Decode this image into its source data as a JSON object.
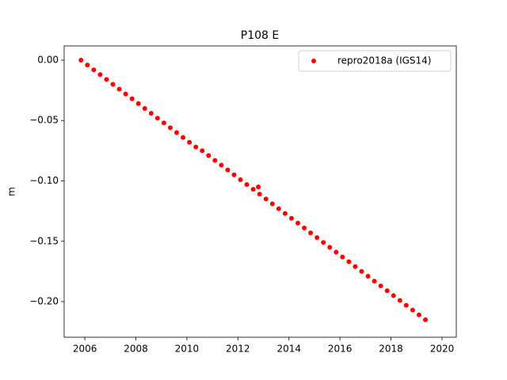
{
  "chart_data": {
    "type": "scatter",
    "title": "P108 E",
    "ylabel": "m",
    "series": [
      {
        "name": "repro2018a (IGS14)",
        "color": "#ff0000",
        "x": [
          2005.85,
          2006.1,
          2006.35,
          2006.6,
          2006.85,
          2007.1,
          2007.35,
          2007.6,
          2007.85,
          2008.1,
          2008.35,
          2008.6,
          2008.85,
          2009.1,
          2009.35,
          2009.6,
          2009.85,
          2010.1,
          2010.35,
          2010.6,
          2010.85,
          2011.1,
          2011.35,
          2011.6,
          2011.85,
          2012.1,
          2012.35,
          2012.6,
          2012.85,
          2013.1,
          2013.35,
          2013.6,
          2013.85,
          2014.1,
          2014.35,
          2014.6,
          2014.85,
          2015.1,
          2015.35,
          2015.6,
          2015.85,
          2016.1,
          2016.35,
          2016.6,
          2016.85,
          2017.1,
          2017.35,
          2017.6,
          2017.85,
          2018.1,
          2018.35,
          2018.6,
          2018.85,
          2019.1,
          2019.35,
          2012.8
        ],
        "values": [
          0.0,
          -0.004,
          -0.008,
          -0.012,
          -0.016,
          -0.02,
          -0.024,
          -0.028,
          -0.032,
          -0.036,
          -0.04,
          -0.044,
          -0.048,
          -0.052,
          -0.056,
          -0.06,
          -0.064,
          -0.068,
          -0.072,
          -0.075,
          -0.079,
          -0.083,
          -0.087,
          -0.091,
          -0.095,
          -0.099,
          -0.103,
          -0.107,
          -0.111,
          -0.115,
          -0.119,
          -0.123,
          -0.127,
          -0.131,
          -0.135,
          -0.139,
          -0.143,
          -0.147,
          -0.151,
          -0.155,
          -0.159,
          -0.163,
          -0.167,
          -0.171,
          -0.175,
          -0.179,
          -0.183,
          -0.187,
          -0.191,
          -0.195,
          -0.199,
          -0.203,
          -0.207,
          -0.211,
          -0.215,
          -0.105
        ]
      }
    ],
    "xlim": [
      2005.19,
      2020.56
    ],
    "ylim": [
      -0.2295,
      0.0118
    ],
    "xticks": [
      2006,
      2008,
      2010,
      2012,
      2014,
      2016,
      2018,
      2020
    ],
    "yticks": [
      {
        "value": 0,
        "label": "0.00"
      },
      {
        "value": -0.05,
        "label": "−0.05"
      },
      {
        "value": -0.1,
        "label": "−0.10"
      },
      {
        "value": -0.15,
        "label": "−0.15"
      },
      {
        "value": -0.2,
        "label": "−0.20"
      }
    ],
    "legend": "upper right"
  }
}
